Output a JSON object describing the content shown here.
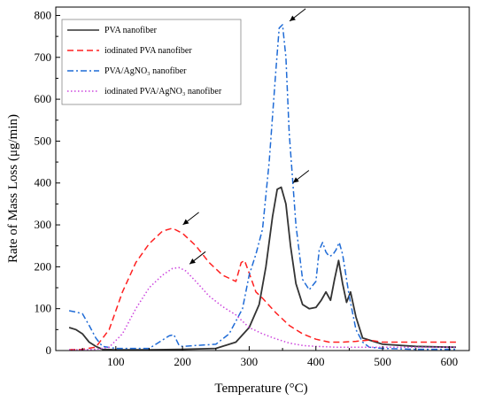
{
  "chart_data": {
    "type": "line",
    "xlabel": "Temperature (°C)",
    "ylabel": "Rate of Mass Loss (μg/min)",
    "xlim": [
      10,
      630
    ],
    "ylim": [
      0,
      820
    ],
    "xticks": [
      100,
      200,
      300,
      400,
      500,
      600
    ],
    "yticks": [
      0,
      100,
      200,
      300,
      400,
      500,
      600,
      700,
      800
    ],
    "legend_position": "top-left",
    "series": [
      {
        "name": "PVA nanofiber",
        "color": "#333333",
        "dash": "solid",
        "x": [
          30,
          40,
          50,
          60,
          70,
          80,
          100,
          150,
          200,
          250,
          280,
          300,
          315,
          325,
          335,
          342,
          348,
          355,
          362,
          370,
          380,
          390,
          400,
          408,
          415,
          422,
          428,
          434,
          440,
          446,
          452,
          460,
          470,
          500,
          550,
          600,
          610
        ],
        "y": [
          55,
          50,
          40,
          20,
          10,
          3,
          2,
          2,
          3,
          5,
          20,
          55,
          110,
          200,
          320,
          385,
          390,
          350,
          250,
          160,
          110,
          100,
          103,
          120,
          140,
          120,
          170,
          215,
          160,
          115,
          140,
          80,
          30,
          15,
          10,
          8,
          8
        ]
      },
      {
        "name": "iodinated PVA nanofiber",
        "color": "#ff2020",
        "dash": "dashed",
        "x": [
          30,
          50,
          70,
          90,
          110,
          130,
          150,
          170,
          185,
          200,
          220,
          240,
          260,
          280,
          288,
          293,
          300,
          310,
          320,
          340,
          360,
          380,
          400,
          420,
          440,
          460,
          480,
          500,
          550,
          600,
          610
        ],
        "y": [
          2,
          3,
          8,
          50,
          140,
          210,
          255,
          285,
          292,
          280,
          250,
          210,
          180,
          165,
          210,
          215,
          185,
          140,
          125,
          90,
          60,
          40,
          27,
          20,
          20,
          22,
          25,
          20,
          20,
          20,
          20
        ]
      },
      {
        "name": "PVA/AgNO₃ nanofiber",
        "color": "#1f6bd6",
        "dash": "dashdot",
        "x": [
          30,
          40,
          50,
          60,
          70,
          80,
          100,
          150,
          180,
          187,
          195,
          200,
          220,
          250,
          270,
          290,
          300,
          310,
          320,
          330,
          335,
          340,
          345,
          350,
          355,
          360,
          370,
          380,
          390,
          400,
          405,
          410,
          415,
          420,
          425,
          430,
          435,
          440,
          450,
          460,
          470,
          480,
          500,
          550,
          600,
          610
        ],
        "y": [
          95,
          92,
          88,
          60,
          30,
          10,
          5,
          5,
          35,
          38,
          12,
          10,
          12,
          15,
          40,
          100,
          180,
          230,
          290,
          450,
          560,
          670,
          770,
          778,
          700,
          520,
          300,
          170,
          145,
          165,
          240,
          258,
          235,
          225,
          228,
          240,
          258,
          230,
          130,
          50,
          20,
          8,
          5,
          3,
          3,
          3
        ]
      },
      {
        "name": "iodinated PVA/AgNO₃ nanofiber",
        "color": "#cc44dd",
        "dash": "dotted",
        "x": [
          30,
          50,
          70,
          90,
          110,
          130,
          150,
          170,
          185,
          195,
          205,
          220,
          240,
          260,
          280,
          300,
          320,
          340,
          360,
          380,
          400,
          430,
          460,
          500,
          550,
          600,
          610
        ],
        "y": [
          2,
          2,
          3,
          8,
          40,
          100,
          150,
          180,
          196,
          198,
          190,
          165,
          130,
          105,
          85,
          55,
          40,
          28,
          18,
          12,
          10,
          8,
          8,
          8,
          8,
          8,
          8
        ]
      }
    ],
    "annotations": [
      {
        "type": "arrow",
        "points_to": [
          350,
          778
        ]
      },
      {
        "type": "arrow",
        "points_to": [
          355,
          392
        ]
      },
      {
        "type": "arrow",
        "points_to": [
          190,
          292
        ]
      },
      {
        "type": "arrow",
        "points_to": [
          200,
          198
        ]
      }
    ]
  }
}
